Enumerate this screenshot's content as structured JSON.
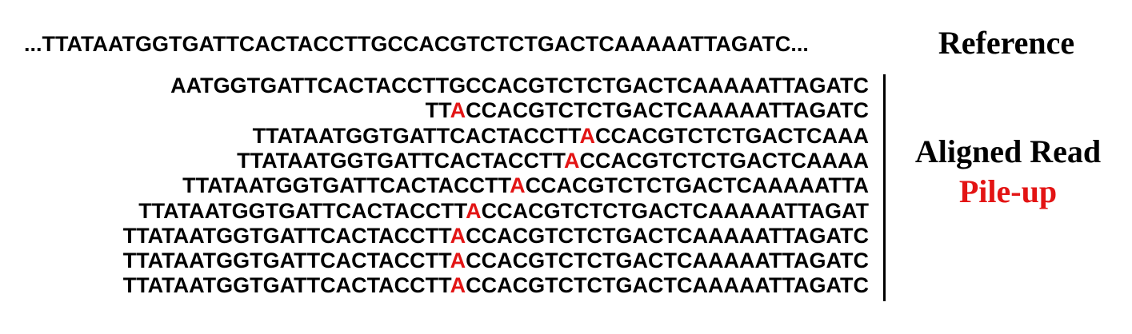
{
  "reference": {
    "sequence": "...TTATAATGGTGATTCACTACCTTGCCACGTCTCTGACTCAAAAATTAGATC...",
    "label": "Reference"
  },
  "reads": [
    {
      "pre": "AATGGTGATTCACTACCTTGCCACGTCTCTGACTCAAAAATTAGATC",
      "variant": "",
      "post": ""
    },
    {
      "pre": "TT",
      "variant": "A",
      "post": "CCACGTCTCTGACTCAAAAATTAGATC"
    },
    {
      "pre": "TTATAATGGTGATTCACTACCTT",
      "variant": "A",
      "post": "CCACGTCTCTGACTCAAA"
    },
    {
      "pre": "TTATAATGGTGATTCACTACCTT",
      "variant": "A",
      "post": "CCACGTCTCTGACTCAAAA"
    },
    {
      "pre": "TTATAATGGTGATTCACTACCTT",
      "variant": "A",
      "post": "CCACGTCTCTGACTCAAAAATTA"
    },
    {
      "pre": "TTATAATGGTGATTCACTACCTT",
      "variant": "A",
      "post": "CCACGTCTCTGACTCAAAAATTAGAT"
    },
    {
      "pre": "TTATAATGGTGATTCACTACCTT",
      "variant": "A",
      "post": "CCACGTCTCTGACTCAAAAATTAGATC"
    },
    {
      "pre": "TTATAATGGTGATTCACTACCTT",
      "variant": "A",
      "post": "CCACGTCTCTGACTCAAAAATTAGATC"
    },
    {
      "pre": "TTATAATGGTGATTCACTACCTT",
      "variant": "A",
      "post": "CCACGTCTCTGACTCAAAAATTAGATC"
    }
  ],
  "pileup_label": {
    "line1": "Aligned Read",
    "line2": "Pile-up"
  },
  "colors": {
    "text": "#000000",
    "variant": "#e31414",
    "background": "#ffffff"
  }
}
